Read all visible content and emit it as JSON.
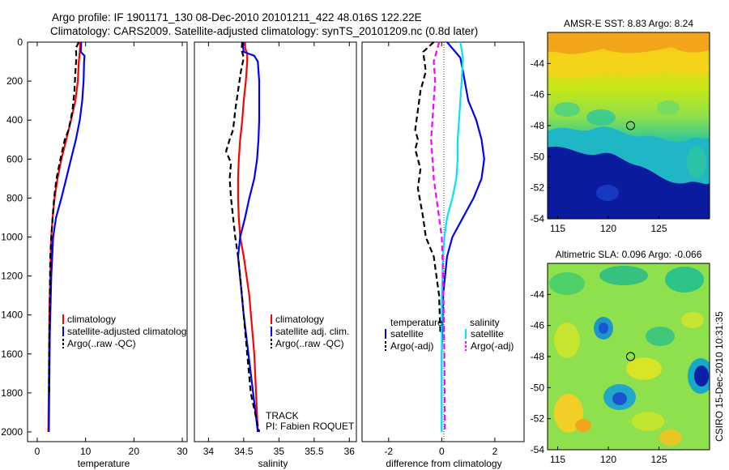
{
  "header": {
    "line1": "Argo profile: IF 1901171_130 08-Dec-2010 20101211_422 48.016S 122.22E",
    "line2": "Climatology: CARS2009. Satellite-adjusted climatology: synTS_20101209.nc (0.8d later)"
  },
  "side_label": "CSIRO 15-Dec-2010 10:31:35",
  "colors": {
    "red": "#ff0000",
    "blue": "#0000ff",
    "black": "#000000",
    "cyan": "#00e5ee",
    "magenta": "#ff00ff"
  },
  "chart_data": [
    {
      "type": "line",
      "id": "temperature",
      "xlabel": "temperature",
      "xlim": [
        -2,
        31
      ],
      "ylim": [
        0,
        2050
      ],
      "xticks": [
        0,
        10,
        20,
        30
      ],
      "yticks": [
        0,
        200,
        400,
        600,
        800,
        1000,
        1200,
        1400,
        1600,
        1800,
        2000
      ],
      "y_reversed": true,
      "legend": [
        "climatology",
        "satellite-adjusted climatolog",
        "Argo(..raw -QC)"
      ],
      "series": [
        {
          "name": "climatology",
          "color": "red",
          "dash": false,
          "x": [
            8.9,
            8.8,
            8.6,
            8.4,
            7.9,
            7.0,
            6.0,
            5.0,
            4.2,
            3.6,
            3.2,
            2.9,
            2.7,
            2.5,
            2.4,
            2.3
          ],
          "y": [
            0,
            50,
            100,
            200,
            300,
            400,
            500,
            600,
            700,
            800,
            900,
            1000,
            1200,
            1400,
            1700,
            2000
          ]
        },
        {
          "name": "satellite-adjusted climatolog",
          "color": "blue",
          "dash": false,
          "x": [
            9.1,
            9.0,
            9.8,
            9.7,
            9.6,
            9.3,
            8.8,
            8.0,
            7.0,
            6.0,
            5.0,
            3.9,
            3.3,
            2.9,
            2.6,
            2.4
          ],
          "y": [
            0,
            50,
            70,
            100,
            200,
            300,
            400,
            500,
            600,
            700,
            800,
            900,
            1000,
            1200,
            1500,
            2000
          ]
        },
        {
          "name": "Argo(..raw -QC)",
          "color": "black",
          "dash": true,
          "x": [
            8.6,
            8.0,
            8.1,
            7.9,
            7.7,
            7.3,
            6.9,
            6.5,
            5.7,
            4.8,
            4.0,
            3.5,
            3.2,
            2.9,
            2.7,
            2.6,
            2.5,
            2.5
          ],
          "y": [
            0,
            30,
            80,
            150,
            250,
            350,
            400,
            450,
            500,
            600,
            700,
            800,
            900,
            1000,
            1100,
            1300,
            1600,
            1800
          ]
        }
      ],
      "annotations": []
    },
    {
      "type": "line",
      "id": "salinity",
      "xlabel": "salinity",
      "xlim": [
        33.8,
        36.1
      ],
      "ylim": [
        0,
        2050
      ],
      "xticks": [
        34,
        34.5,
        35,
        35.5,
        36
      ],
      "yticks": [],
      "y_reversed": true,
      "legend": [
        "climatology",
        "satellite adj. clim.",
        "Argo(..raw -QC)"
      ],
      "series": [
        {
          "name": "climatology",
          "color": "red",
          "dash": false,
          "x": [
            34.52,
            34.52,
            34.55,
            34.55,
            34.53,
            34.5,
            34.48,
            34.45,
            34.43,
            34.42,
            34.42,
            34.43,
            34.45,
            34.5,
            34.58,
            34.65,
            34.7
          ],
          "y": [
            0,
            30,
            60,
            100,
            200,
            300,
            400,
            500,
            600,
            700,
            800,
            900,
            1000,
            1100,
            1300,
            1600,
            2000
          ]
        },
        {
          "name": "satellite adj. clim.",
          "color": "blue",
          "dash": false,
          "x": [
            34.48,
            34.5,
            34.65,
            34.7,
            34.72,
            34.72,
            34.72,
            34.71,
            34.69,
            34.65,
            34.58,
            34.52,
            34.45,
            34.42,
            34.5,
            34.6,
            34.7
          ],
          "y": [
            0,
            50,
            70,
            100,
            200,
            300,
            400,
            500,
            600,
            700,
            800,
            900,
            1000,
            1100,
            1400,
            1700,
            2000
          ]
        },
        {
          "name": "Argo(..raw -QC)",
          "color": "black",
          "dash": true,
          "x": [
            34.48,
            34.47,
            34.5,
            34.46,
            34.42,
            34.38,
            34.35,
            34.3,
            34.25,
            34.32,
            34.3,
            34.32,
            34.35,
            34.38,
            34.42,
            34.45,
            34.5,
            34.55,
            34.6,
            34.66,
            34.72
          ],
          "y": [
            0,
            40,
            80,
            150,
            250,
            350,
            450,
            500,
            560,
            620,
            700,
            800,
            900,
            1000,
            1100,
            1200,
            1400,
            1600,
            1800,
            1900,
            2000
          ]
        }
      ],
      "annotations": [
        "TRACK",
        "PI: Fabien ROQUET"
      ]
    },
    {
      "type": "line",
      "id": "difference",
      "xlabel": "difference from climatology",
      "xlim": [
        -3,
        3.1
      ],
      "ylim": [
        0,
        2050
      ],
      "xticks": [
        -2,
        0,
        2
      ],
      "yticks": [],
      "y_reversed": true,
      "legend_left_title": "temperature",
      "legend_right_title": "salinity",
      "legend": [
        "satellite",
        "Argo(-adj)",
        "satellite",
        "Argo(-adj)"
      ],
      "series": [
        {
          "name": "satellite",
          "color": "blue",
          "dash": false,
          "x": [
            0.2,
            0.7,
            0.8,
            1.0,
            1.3,
            1.5,
            1.6,
            1.5,
            1.2,
            0.8,
            0.4,
            0.2,
            0.05,
            0.0,
            0.0
          ],
          "y": [
            0,
            80,
            150,
            300,
            400,
            500,
            600,
            700,
            800,
            900,
            1000,
            1100,
            1300,
            1600,
            2000
          ]
        },
        {
          "name": "Argo(-adj)",
          "color": "black",
          "dash": true,
          "x": [
            -0.3,
            -0.7,
            -0.6,
            -0.8,
            -0.9,
            -1.0,
            -0.9,
            -1.0,
            -0.8,
            -0.9,
            -0.7,
            -0.6,
            -0.3,
            -0.1,
            -0.05
          ],
          "y": [
            0,
            50,
            150,
            250,
            350,
            450,
            500,
            550,
            650,
            750,
            900,
            1000,
            1100,
            1300,
            1500
          ]
        },
        {
          "name": "satellite",
          "color": "cyan",
          "dash": false,
          "x": [
            0.7,
            0.8,
            0.75,
            0.7,
            0.65,
            0.6,
            0.6,
            0.55,
            0.4,
            0.2,
            0.1,
            0.05,
            0.0,
            0.0
          ],
          "y": [
            0,
            80,
            200,
            300,
            400,
            500,
            600,
            700,
            800,
            900,
            1000,
            1100,
            1300,
            2000
          ]
        },
        {
          "name": "Argo(-adj)",
          "color": "magenta",
          "dash": true,
          "x": [
            -0.1,
            -0.3,
            -0.25,
            -0.3,
            -0.35,
            -0.4,
            -0.35,
            -0.3,
            -0.2,
            -0.1,
            0.0,
            0.05,
            0.1,
            0.12
          ],
          "y": [
            0,
            100,
            200,
            300,
            400,
            500,
            600,
            700,
            800,
            900,
            1000,
            1200,
            1600,
            2000
          ]
        }
      ],
      "annotations": []
    },
    {
      "type": "heatmap",
      "id": "sst",
      "title": "AMSR-E SST: 8.83 Argo: 8.24",
      "xlim": [
        114,
        130
      ],
      "ylim": [
        -54,
        -42
      ],
      "xticks": [
        115,
        120,
        125
      ],
      "yticks": [
        -44,
        -46,
        -48,
        -50,
        -52,
        -54
      ],
      "marker": {
        "lon": 122.2,
        "lat": -48.0
      }
    },
    {
      "type": "heatmap",
      "id": "sla",
      "title": "Altimetric SLA: 0.096 Argo: -0.066",
      "xlim": [
        114,
        130
      ],
      "ylim": [
        -54,
        -42
      ],
      "xticks": [
        115,
        120,
        125
      ],
      "yticks": [
        -44,
        -46,
        -48,
        -50,
        -52,
        -54
      ],
      "marker": {
        "lon": 122.2,
        "lat": -48.0
      }
    }
  ]
}
